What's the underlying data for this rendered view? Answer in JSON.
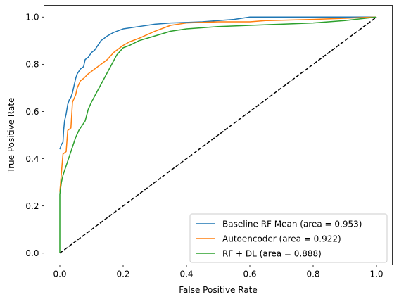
{
  "chart_data": {
    "type": "line",
    "title": "",
    "xlabel": "False Positive Rate",
    "ylabel": "True Positive Rate",
    "xlim": [
      -0.05,
      1.05
    ],
    "ylim": [
      -0.05,
      1.05
    ],
    "x_ticks": [
      "0.0",
      "0.2",
      "0.4",
      "0.6",
      "0.8",
      "1.0"
    ],
    "y_ticks": [
      "0.0",
      "0.2",
      "0.4",
      "0.6",
      "0.8",
      "1.0"
    ],
    "grid": false,
    "legend_position": "lower right",
    "series": [
      {
        "name": "Baseline RF Mean (area = 0.953)",
        "color": "#1f77b4",
        "points": [
          [
            0.0,
            0.44
          ],
          [
            0.005,
            0.46
          ],
          [
            0.01,
            0.47
          ],
          [
            0.012,
            0.52
          ],
          [
            0.015,
            0.56
          ],
          [
            0.02,
            0.59
          ],
          [
            0.025,
            0.63
          ],
          [
            0.03,
            0.65
          ],
          [
            0.035,
            0.66
          ],
          [
            0.04,
            0.68
          ],
          [
            0.045,
            0.71
          ],
          [
            0.05,
            0.74
          ],
          [
            0.055,
            0.76
          ],
          [
            0.065,
            0.78
          ],
          [
            0.075,
            0.79
          ],
          [
            0.08,
            0.82
          ],
          [
            0.09,
            0.83
          ],
          [
            0.1,
            0.85
          ],
          [
            0.11,
            0.86
          ],
          [
            0.12,
            0.88
          ],
          [
            0.13,
            0.9
          ],
          [
            0.15,
            0.92
          ],
          [
            0.17,
            0.935
          ],
          [
            0.2,
            0.95
          ],
          [
            0.25,
            0.96
          ],
          [
            0.3,
            0.97
          ],
          [
            0.35,
            0.975
          ],
          [
            0.45,
            0.98
          ],
          [
            0.5,
            0.985
          ],
          [
            0.55,
            0.99
          ],
          [
            0.6,
            1.0
          ],
          [
            1.0,
            1.0
          ]
        ]
      },
      {
        "name": "Autoencoder (area = 0.922)",
        "color": "#ff7f0e",
        "points": [
          [
            0.0,
            0.26
          ],
          [
            0.005,
            0.34
          ],
          [
            0.008,
            0.39
          ],
          [
            0.01,
            0.42
          ],
          [
            0.02,
            0.43
          ],
          [
            0.025,
            0.52
          ],
          [
            0.035,
            0.53
          ],
          [
            0.04,
            0.64
          ],
          [
            0.05,
            0.67
          ],
          [
            0.055,
            0.7
          ],
          [
            0.065,
            0.73
          ],
          [
            0.075,
            0.74
          ],
          [
            0.09,
            0.76
          ],
          [
            0.11,
            0.78
          ],
          [
            0.13,
            0.8
          ],
          [
            0.15,
            0.82
          ],
          [
            0.17,
            0.85
          ],
          [
            0.18,
            0.86
          ],
          [
            0.2,
            0.88
          ],
          [
            0.22,
            0.895
          ],
          [
            0.25,
            0.91
          ],
          [
            0.3,
            0.94
          ],
          [
            0.35,
            0.965
          ],
          [
            0.4,
            0.975
          ],
          [
            0.5,
            0.98
          ],
          [
            0.6,
            0.98
          ],
          [
            0.65,
            0.985
          ],
          [
            0.8,
            0.99
          ],
          [
            0.9,
            0.995
          ],
          [
            1.0,
            1.0
          ]
        ]
      },
      {
        "name": "RF + DL (area = 0.888)",
        "color": "#2ca02c",
        "points": [
          [
            0.0,
            0.0
          ],
          [
            0.0,
            0.25
          ],
          [
            0.005,
            0.3
          ],
          [
            0.01,
            0.33
          ],
          [
            0.02,
            0.37
          ],
          [
            0.03,
            0.41
          ],
          [
            0.04,
            0.45
          ],
          [
            0.05,
            0.49
          ],
          [
            0.06,
            0.52
          ],
          [
            0.08,
            0.56
          ],
          [
            0.09,
            0.61
          ],
          [
            0.1,
            0.64
          ],
          [
            0.12,
            0.69
          ],
          [
            0.14,
            0.74
          ],
          [
            0.16,
            0.79
          ],
          [
            0.18,
            0.84
          ],
          [
            0.2,
            0.87
          ],
          [
            0.22,
            0.88
          ],
          [
            0.25,
            0.9
          ],
          [
            0.3,
            0.92
          ],
          [
            0.35,
            0.94
          ],
          [
            0.4,
            0.95
          ],
          [
            0.5,
            0.96
          ],
          [
            0.6,
            0.965
          ],
          [
            0.7,
            0.97
          ],
          [
            0.8,
            0.975
          ],
          [
            0.9,
            0.985
          ],
          [
            1.0,
            1.0
          ]
        ]
      },
      {
        "name": "",
        "color": "#000000",
        "dashed": true,
        "points": [
          [
            0.0,
            0.0
          ],
          [
            1.0,
            1.0
          ]
        ]
      }
    ]
  }
}
